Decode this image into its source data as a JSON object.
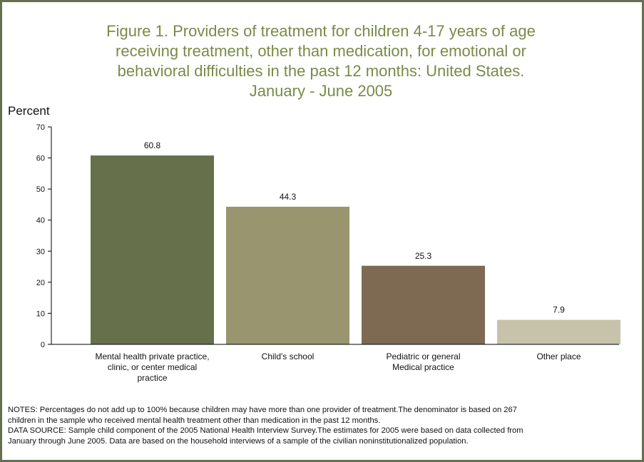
{
  "title_lines": [
    "Figure 1. Providers of treatment for children 4-17 years of age",
    "receiving treatment, other than medication, for emotional or",
    "behavioral difficulties in the past 12 months: United States.",
    "January - June 2005"
  ],
  "chart_data": {
    "type": "bar",
    "title": "Figure 1. Providers of treatment for children 4-17 years of age receiving treatment, other than medication, for emotional or behavioral difficulties in the past 12 months: United States. January - June 2005",
    "ylabel": "Percent",
    "xlabel": "",
    "ylim": [
      0,
      70
    ],
    "yticks": [
      0,
      10,
      20,
      30,
      40,
      50,
      60,
      70
    ],
    "grid": false,
    "categories": [
      [
        "Mental health private practice,",
        "clinic, or center medical",
        "practice"
      ],
      [
        "Child's school"
      ],
      [
        "Pediatric or general",
        "Medical practice"
      ],
      [
        "Other place"
      ]
    ],
    "values": [
      60.8,
      44.3,
      25.3,
      7.9
    ],
    "value_labels": [
      "60.8",
      "44.3",
      "25.3",
      "7.9"
    ],
    "colors": [
      "#66714b",
      "#99956e",
      "#7e6a53",
      "#c6c3aa"
    ]
  },
  "notes": [
    "NOTES: Percentages do not add up to 100% because children may have more than one provider of treatment.The denominator is based on 267",
    "children in the sample who received mental health treatment other than medication in the past 12 months.",
    "DATA SOURCE: Sample child component of the 2005 National Health Interview Survey.The estimates for 2005 were based on data collected from",
    "January through June 2005. Data are based on the household interviews of a sample of the civilian noninstitutionalized population."
  ]
}
